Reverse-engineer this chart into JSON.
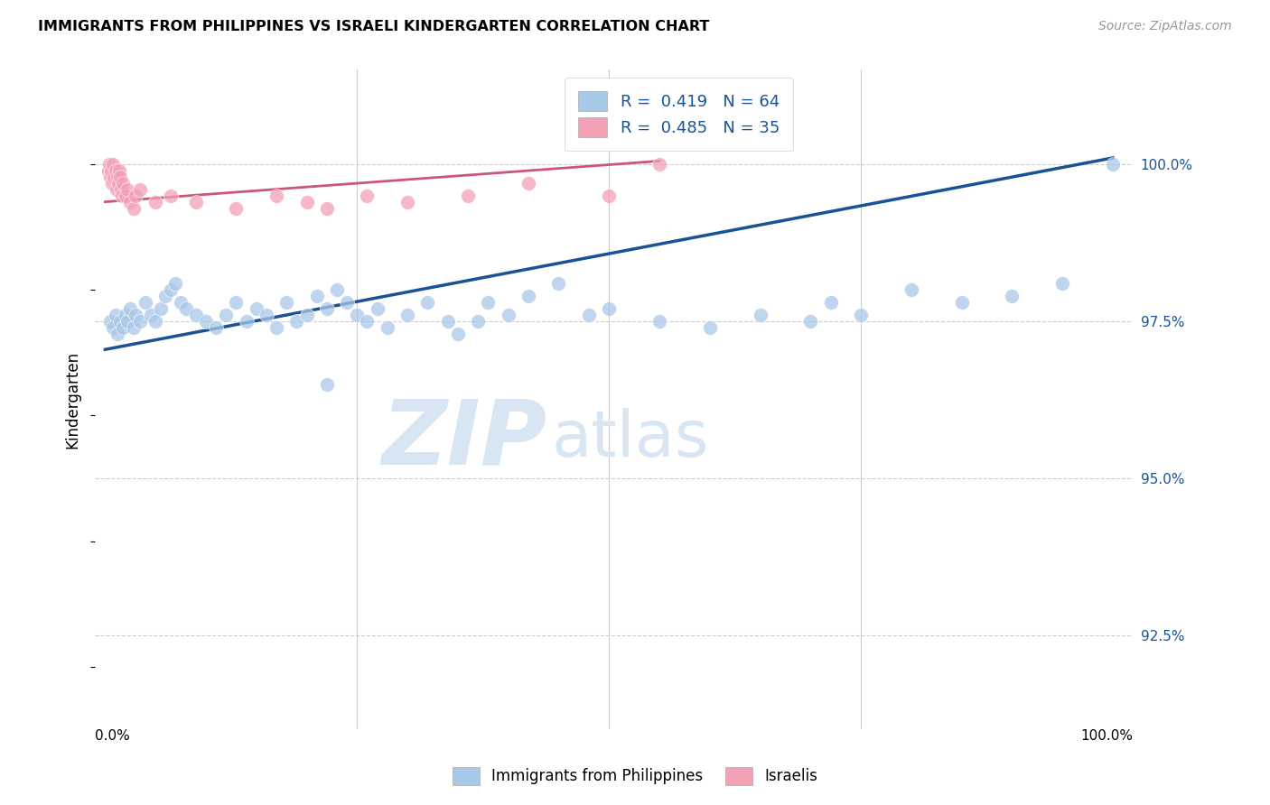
{
  "title": "IMMIGRANTS FROM PHILIPPINES VS ISRAELI KINDERGARTEN CORRELATION CHART",
  "source": "Source: ZipAtlas.com",
  "ylabel": "Kindergarten",
  "ytick_values": [
    92.5,
    95.0,
    97.5,
    100.0
  ],
  "ytick_labels": [
    "92.5%",
    "95.0%",
    "97.5%",
    "100.0%"
  ],
  "ylim": [
    91.0,
    101.5
  ],
  "xlim": [
    -1.0,
    102.0
  ],
  "legend_blue_text": "R =  0.419   N = 64",
  "legend_pink_text": "R =  0.485   N = 35",
  "legend_label1": "Immigrants from Philippines",
  "legend_label2": "Israelis",
  "blue_color": "#A8C8E8",
  "pink_color": "#F4A0B5",
  "line_blue": "#1A5296",
  "line_pink": "#CC5577",
  "watermark_zip": "ZIP",
  "watermark_atlas": "atlas",
  "watermark_color": "#D8E6F3",
  "grid_color": "#CCCCCC",
  "blue_x": [
    0.5,
    0.8,
    1.0,
    1.2,
    1.5,
    1.8,
    2.0,
    2.2,
    2.5,
    2.8,
    3.0,
    3.5,
    4.0,
    4.5,
    5.0,
    5.5,
    6.0,
    6.5,
    7.0,
    7.5,
    8.0,
    9.0,
    10.0,
    11.0,
    12.0,
    13.0,
    14.0,
    15.0,
    16.0,
    17.0,
    18.0,
    19.0,
    20.0,
    21.0,
    22.0,
    23.0,
    24.0,
    25.0,
    26.0,
    27.0,
    28.0,
    30.0,
    32.0,
    34.0,
    35.0,
    37.0,
    38.0,
    40.0,
    42.0,
    45.0,
    48.0,
    50.0,
    55.0,
    22.0,
    60.0,
    65.0,
    70.0,
    72.0,
    75.0,
    80.0,
    85.0,
    90.0,
    95.0,
    100.0
  ],
  "blue_y": [
    97.5,
    97.4,
    97.6,
    97.3,
    97.5,
    97.4,
    97.6,
    97.5,
    97.7,
    97.4,
    97.6,
    97.5,
    97.8,
    97.6,
    97.5,
    97.7,
    97.9,
    98.0,
    98.1,
    97.8,
    97.7,
    97.6,
    97.5,
    97.4,
    97.6,
    97.8,
    97.5,
    97.7,
    97.6,
    97.4,
    97.8,
    97.5,
    97.6,
    97.9,
    97.7,
    98.0,
    97.8,
    97.6,
    97.5,
    97.7,
    97.4,
    97.6,
    97.8,
    97.5,
    97.3,
    97.5,
    97.8,
    97.6,
    97.9,
    98.1,
    97.6,
    97.7,
    97.5,
    96.5,
    97.4,
    97.6,
    97.5,
    97.8,
    97.6,
    98.0,
    97.8,
    97.9,
    98.1,
    100.0
  ],
  "pink_x": [
    0.3,
    0.4,
    0.5,
    0.6,
    0.7,
    0.8,
    0.9,
    1.0,
    1.1,
    1.2,
    1.3,
    1.4,
    1.5,
    1.6,
    1.7,
    1.8,
    2.0,
    2.2,
    2.5,
    2.8,
    3.0,
    3.5,
    5.0,
    6.5,
    9.0,
    13.0,
    17.0,
    20.0,
    22.0,
    26.0,
    30.0,
    36.0,
    42.0,
    50.0,
    55.0
  ],
  "pink_y": [
    99.9,
    100.0,
    99.8,
    99.9,
    99.7,
    100.0,
    99.8,
    99.9,
    99.6,
    99.8,
    99.7,
    99.9,
    99.8,
    99.6,
    99.5,
    99.7,
    99.5,
    99.6,
    99.4,
    99.3,
    99.5,
    99.6,
    99.4,
    99.5,
    99.4,
    99.3,
    99.5,
    99.4,
    99.3,
    99.5,
    99.4,
    99.5,
    99.7,
    99.5,
    100.0
  ],
  "blue_line_x": [
    0,
    100
  ],
  "blue_line_y": [
    97.05,
    100.1
  ],
  "pink_line_x": [
    0,
    55
  ],
  "pink_line_y": [
    99.4,
    100.05
  ]
}
